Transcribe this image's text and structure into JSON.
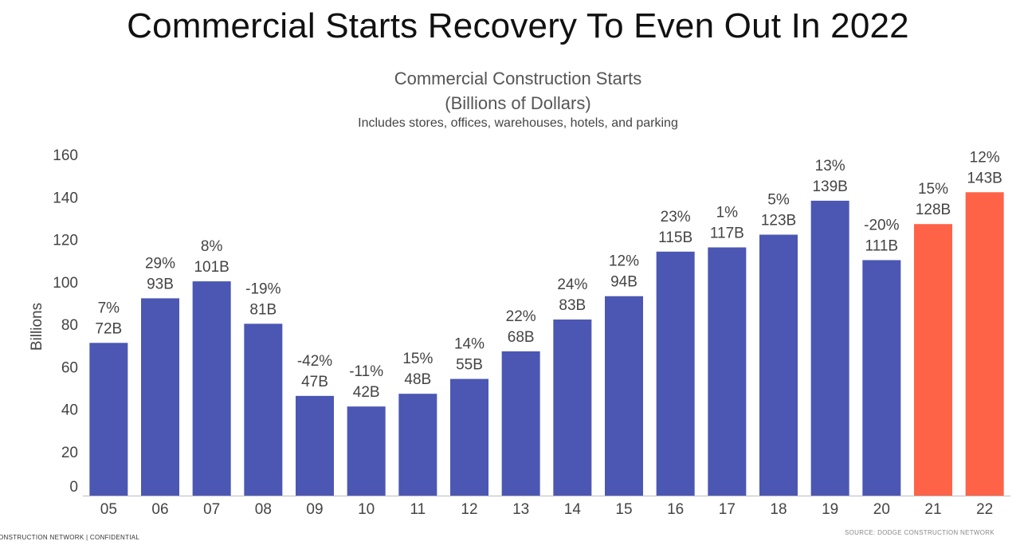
{
  "slide": {
    "title": "Commercial Starts Recovery To Even Out In 2022",
    "footer_left": "ONSTRUCTION NETWORK  |  CONFIDENTIAL",
    "footer_right": "SOURCE: DODGE CONSTRUCTION NETWORK"
  },
  "chart_data": {
    "type": "bar",
    "title": "Commercial Construction Starts",
    "subtitle": "(Billions of Dollars)",
    "note": "Includes stores, offices, warehouses, hotels, and parking",
    "ylabel": "Billions",
    "xlabel": "",
    "ylim": [
      0,
      160
    ],
    "yticks": [
      0,
      20,
      40,
      60,
      80,
      100,
      120,
      140,
      160
    ],
    "grid": false,
    "categories": [
      "05",
      "06",
      "07",
      "08",
      "09",
      "10",
      "11",
      "12",
      "13",
      "14",
      "15",
      "16",
      "17",
      "18",
      "19",
      "20",
      "21",
      "22"
    ],
    "values": [
      72,
      93,
      101,
      81,
      47,
      42,
      48,
      55,
      68,
      83,
      94,
      115,
      117,
      123,
      139,
      111,
      128,
      143
    ],
    "value_labels": [
      "72B",
      "93B",
      "101B",
      "81B",
      "47B",
      "42B",
      "48B",
      "55B",
      "68B",
      "83B",
      "94B",
      "115B",
      "117B",
      "123B",
      "139B",
      "111B",
      "128B",
      "143B"
    ],
    "change_labels": [
      "7%",
      "29%",
      "8%",
      "-19%",
      "-42%",
      "-11%",
      "15%",
      "14%",
      "22%",
      "24%",
      "12%",
      "23%",
      "1%",
      "5%",
      "13%",
      "-20%",
      "15%",
      "12%"
    ],
    "colors": {
      "actual": "#4B57B3",
      "forecast": "#FF6347",
      "axis": "#bbbbbb",
      "tick_text": "#444444",
      "label_text": "#444444"
    },
    "forecast_categories": [
      "21",
      "22"
    ]
  }
}
